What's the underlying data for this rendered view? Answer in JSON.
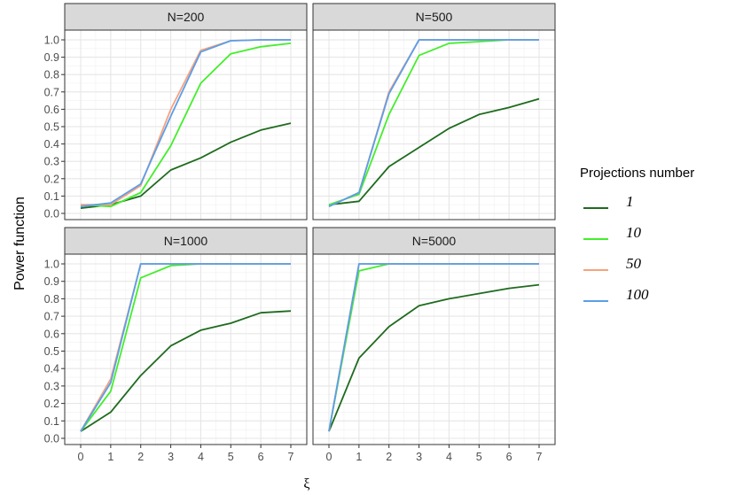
{
  "chart_data": {
    "type": "line",
    "ylabel": "Power function",
    "xlabel": "ξ",
    "xlim": [
      0,
      7
    ],
    "ylim": [
      0,
      1
    ],
    "x_ticks": [
      0,
      1,
      2,
      3,
      4,
      5,
      6,
      7
    ],
    "y_ticks": [
      0.0,
      0.1,
      0.2,
      0.3,
      0.4,
      0.5,
      0.6,
      0.7,
      0.8,
      0.9,
      1.0
    ],
    "grid": true,
    "legend": {
      "title": "Projections number",
      "placement": "right",
      "entries": [
        {
          "label": "1",
          "color": "#1e6b1e"
        },
        {
          "label": "10",
          "color": "#43ee2b"
        },
        {
          "label": "50",
          "color": "#f7a27e"
        },
        {
          "label": "100",
          "color": "#5b9ee8"
        }
      ]
    },
    "x": [
      0,
      1,
      2,
      3,
      4,
      5,
      6,
      7
    ],
    "panels": [
      {
        "title": "N=200",
        "series": [
          {
            "name": "1",
            "color": "#1e6b1e",
            "values": [
              0.03,
              0.05,
              0.1,
              0.25,
              0.32,
              0.41,
              0.48,
              0.52
            ]
          },
          {
            "name": "10",
            "color": "#43ee2b",
            "values": [
              0.05,
              0.04,
              0.12,
              0.39,
              0.75,
              0.92,
              0.96,
              0.98
            ]
          },
          {
            "name": "50",
            "color": "#f7a27e",
            "values": [
              0.05,
              0.05,
              0.16,
              0.6,
              0.94,
              0.995,
              1.0,
              1.0
            ]
          },
          {
            "name": "100",
            "color": "#5b9ee8",
            "values": [
              0.04,
              0.06,
              0.17,
              0.56,
              0.93,
              0.995,
              1.0,
              1.0
            ]
          }
        ]
      },
      {
        "title": "N=500",
        "series": [
          {
            "name": "1",
            "color": "#1e6b1e",
            "values": [
              0.05,
              0.07,
              0.27,
              0.38,
              0.49,
              0.57,
              0.61,
              0.66
            ]
          },
          {
            "name": "10",
            "color": "#43ee2b",
            "values": [
              0.05,
              0.11,
              0.57,
              0.91,
              0.98,
              0.99,
              1.0,
              1.0
            ]
          },
          {
            "name": "50",
            "color": "#f7a27e",
            "values": [
              0.04,
              0.12,
              0.7,
              1.0,
              1.0,
              1.0,
              1.0,
              1.0
            ]
          },
          {
            "name": "100",
            "color": "#5b9ee8",
            "values": [
              0.04,
              0.12,
              0.69,
              1.0,
              1.0,
              1.0,
              1.0,
              1.0
            ]
          }
        ]
      },
      {
        "title": "N=1000",
        "series": [
          {
            "name": "1",
            "color": "#1e6b1e",
            "values": [
              0.04,
              0.15,
              0.36,
              0.53,
              0.62,
              0.66,
              0.72,
              0.73
            ]
          },
          {
            "name": "10",
            "color": "#43ee2b",
            "values": [
              0.04,
              0.27,
              0.92,
              0.99,
              1.0,
              1.0,
              1.0,
              1.0
            ]
          },
          {
            "name": "50",
            "color": "#f7a27e",
            "values": [
              0.04,
              0.34,
              1.0,
              1.0,
              1.0,
              1.0,
              1.0,
              1.0
            ]
          },
          {
            "name": "100",
            "color": "#5b9ee8",
            "values": [
              0.04,
              0.32,
              1.0,
              1.0,
              1.0,
              1.0,
              1.0,
              1.0
            ]
          }
        ]
      },
      {
        "title": "N=5000",
        "series": [
          {
            "name": "1",
            "color": "#1e6b1e",
            "values": [
              0.04,
              0.46,
              0.64,
              0.76,
              0.8,
              0.83,
              0.86,
              0.88
            ]
          },
          {
            "name": "10",
            "color": "#43ee2b",
            "values": [
              0.04,
              0.96,
              1.0,
              1.0,
              1.0,
              1.0,
              1.0,
              1.0
            ]
          },
          {
            "name": "50",
            "color": "#f7a27e",
            "values": [
              0.04,
              1.0,
              1.0,
              1.0,
              1.0,
              1.0,
              1.0,
              1.0
            ]
          },
          {
            "name": "100",
            "color": "#5b9ee8",
            "values": [
              0.04,
              1.0,
              1.0,
              1.0,
              1.0,
              1.0,
              1.0,
              1.0
            ]
          }
        ]
      }
    ]
  }
}
